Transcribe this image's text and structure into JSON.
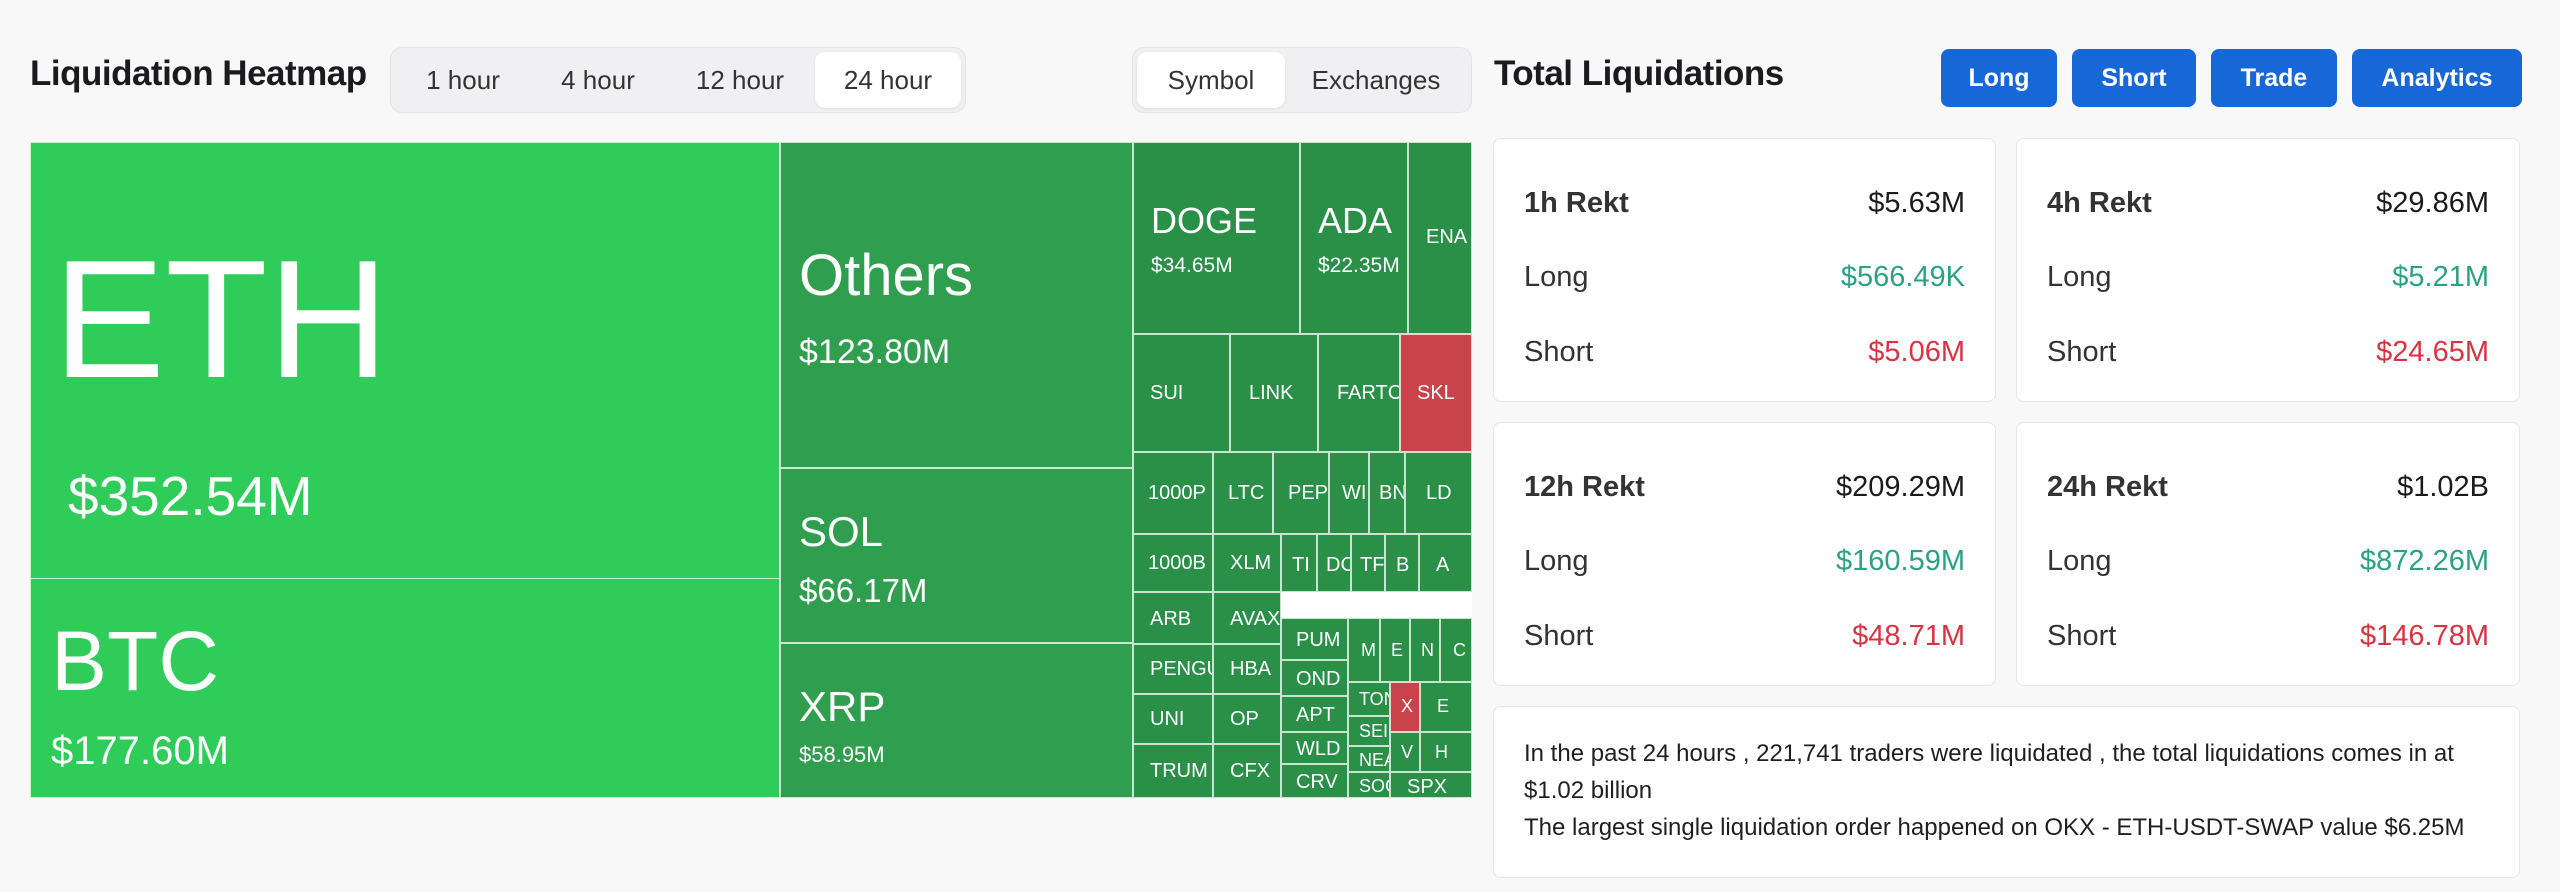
{
  "heatmap": {
    "title": "Liquidation Heatmap",
    "time_tabs": [
      "1 hour",
      "4 hour",
      "12 hour",
      "24 hour"
    ],
    "active_time_tab": "24 hour",
    "group_tabs": [
      "Symbol",
      "Exchanges"
    ],
    "active_group_tab": "Symbol",
    "cells": [
      {
        "symbol": "ETH",
        "value": "$352.54M"
      },
      {
        "symbol": "BTC",
        "value": "$177.60M"
      },
      {
        "symbol": "Others",
        "value": "$123.80M"
      },
      {
        "symbol": "SOL",
        "value": "$66.17M"
      },
      {
        "symbol": "XRP",
        "value": "$58.95M"
      },
      {
        "symbol": "DOGE",
        "value": "$34.65M"
      },
      {
        "symbol": "ADA",
        "value": "$22.35M"
      },
      {
        "symbol": "ENA",
        "value": ""
      },
      {
        "symbol": "SUI",
        "value": ""
      },
      {
        "symbol": "LINK",
        "value": ""
      },
      {
        "symbol": "FARTC",
        "value": ""
      },
      {
        "symbol": "SKL",
        "value": ""
      },
      {
        "symbol": "1000P",
        "value": ""
      },
      {
        "symbol": "LTC",
        "value": ""
      },
      {
        "symbol": "PEP",
        "value": ""
      },
      {
        "symbol": "WI",
        "value": ""
      },
      {
        "symbol": "BN",
        "value": ""
      },
      {
        "symbol": "LD",
        "value": ""
      },
      {
        "symbol": "1000B",
        "value": ""
      },
      {
        "symbol": "XLM",
        "value": ""
      },
      {
        "symbol": "TI",
        "value": ""
      },
      {
        "symbol": "DC",
        "value": ""
      },
      {
        "symbol": "TF",
        "value": ""
      },
      {
        "symbol": "B",
        "value": ""
      },
      {
        "symbol": "A",
        "value": ""
      },
      {
        "symbol": "ARB",
        "value": ""
      },
      {
        "symbol": "AVAX",
        "value": ""
      },
      {
        "symbol": "PUM",
        "value": ""
      },
      {
        "symbol": "M",
        "value": ""
      },
      {
        "symbol": "E",
        "value": ""
      },
      {
        "symbol": "N",
        "value": ""
      },
      {
        "symbol": "C",
        "value": ""
      },
      {
        "symbol": "PENGU",
        "value": ""
      },
      {
        "symbol": "HBA",
        "value": ""
      },
      {
        "symbol": "OND",
        "value": ""
      },
      {
        "symbol": "UNI",
        "value": ""
      },
      {
        "symbol": "OP",
        "value": ""
      },
      {
        "symbol": "APT",
        "value": ""
      },
      {
        "symbol": "TON",
        "value": ""
      },
      {
        "symbol": "X",
        "value": ""
      },
      {
        "symbol": "E",
        "value": ""
      },
      {
        "symbol": "SEI",
        "value": ""
      },
      {
        "symbol": "WLD",
        "value": ""
      },
      {
        "symbol": "NEA",
        "value": ""
      },
      {
        "symbol": "V",
        "value": ""
      },
      {
        "symbol": "H",
        "value": ""
      },
      {
        "symbol": "TRUM",
        "value": ""
      },
      {
        "symbol": "CFX",
        "value": ""
      },
      {
        "symbol": "CRV",
        "value": ""
      },
      {
        "symbol": "SOC",
        "value": ""
      },
      {
        "symbol": "SPX",
        "value": ""
      }
    ]
  },
  "totals": {
    "title": "Total Liquidations",
    "buttons": [
      "Long",
      "Short",
      "Trade",
      "Analytics"
    ],
    "cards": [
      {
        "label": "1h Rekt",
        "total": "$5.63M",
        "long_label": "Long",
        "long": "$566.49K",
        "short_label": "Short",
        "short": "$5.06M"
      },
      {
        "label": "4h Rekt",
        "total": "$29.86M",
        "long_label": "Long",
        "long": "$5.21M",
        "short_label": "Short",
        "short": "$24.65M"
      },
      {
        "label": "12h Rekt",
        "total": "$209.29M",
        "long_label": "Long",
        "long": "$160.59M",
        "short_label": "Short",
        "short": "$48.71M"
      },
      {
        "label": "24h Rekt",
        "total": "$1.02B",
        "long_label": "Long",
        "long": "$872.26M",
        "short_label": "Short",
        "short": "$146.78M"
      }
    ],
    "summary_line1": "In the past 24 hours , 221,741 traders were liquidated , the total liquidations comes in at $1.02 billion",
    "summary_line2": "The largest single liquidation order happened on OKX - ETH-USDT-SWAP value $6.25M"
  },
  "colors": {
    "bright_green": "#30cc5a",
    "green": "#2f9e4f",
    "red": "#c9434a",
    "button_blue": "#1668d8",
    "long_text": "#2aa283",
    "short_text": "#d73443"
  }
}
